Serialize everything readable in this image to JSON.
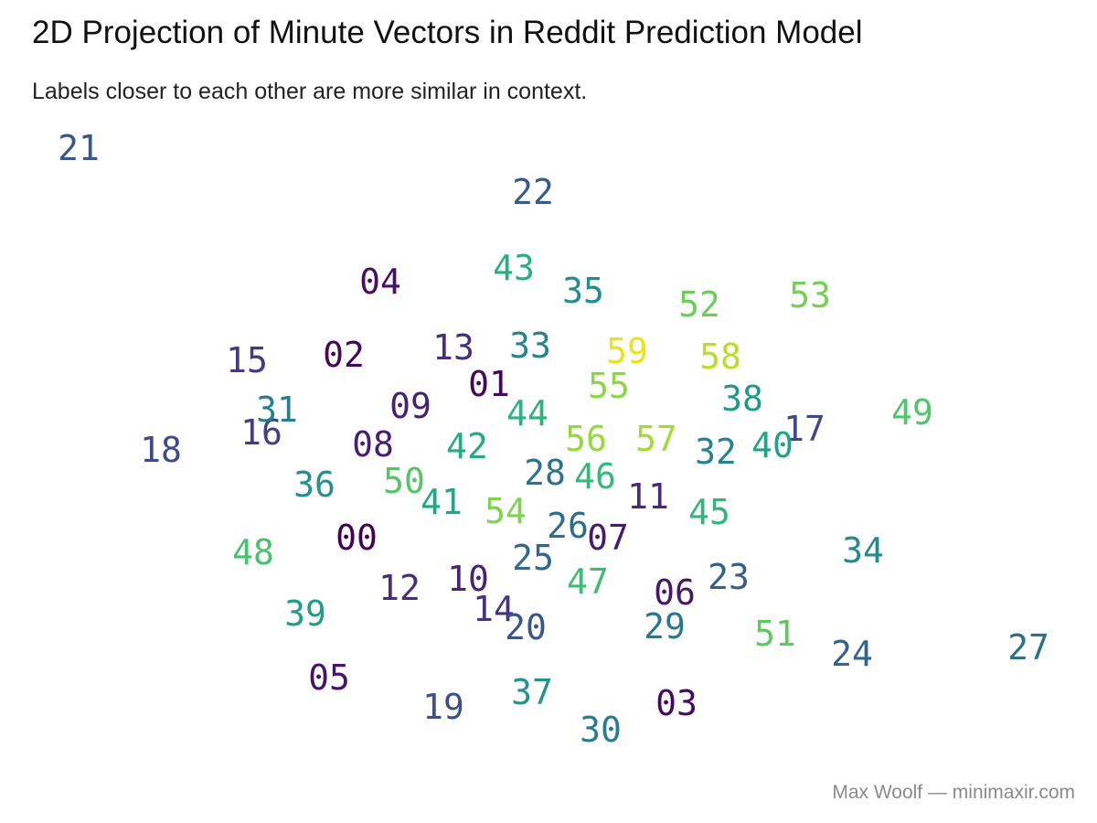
{
  "title": "2D Projection of Minute Vectors in Reddit Prediction Model",
  "subtitle": "Labels closer to each other are more similar in context.",
  "caption": "Max Woolf — minimaxir.com",
  "chart_data": {
    "type": "scatter",
    "title": "2D Projection of Minute Vectors in Reddit Prediction Model",
    "subtitle": "Labels closer to each other are more similar in context.",
    "xlabel": "",
    "ylabel": "",
    "grid": false,
    "legend": "none",
    "xlim": [
      0,
      1200
    ],
    "ylim": [
      0,
      900
    ],
    "color_scale": "viridis (00 = dark purple → 59 = yellow)",
    "points": [
      {
        "label": "00",
        "x": 390,
        "y": 312,
        "color": "#440154"
      },
      {
        "label": "01",
        "x": 535,
        "y": 480,
        "color": "#450559"
      },
      {
        "label": "02",
        "x": 376,
        "y": 512,
        "color": "#46085c"
      },
      {
        "label": "03",
        "x": 740,
        "y": 131,
        "color": "#460b5e"
      },
      {
        "label": "04",
        "x": 416,
        "y": 592,
        "color": "#471063"
      },
      {
        "label": "05",
        "x": 360,
        "y": 159,
        "color": "#481467"
      },
      {
        "label": "06",
        "x": 738,
        "y": 252,
        "color": "#481769"
      },
      {
        "label": "07",
        "x": 665,
        "y": 312,
        "color": "#481b6d"
      },
      {
        "label": "08",
        "x": 408,
        "y": 414,
        "color": "#481f70"
      },
      {
        "label": "09",
        "x": 449,
        "y": 456,
        "color": "#482173"
      },
      {
        "label": "10",
        "x": 512,
        "y": 267,
        "color": "#482475"
      },
      {
        "label": "11",
        "x": 709,
        "y": 357,
        "color": "#472a7a"
      },
      {
        "label": "12",
        "x": 437,
        "y": 257,
        "color": "#472d7b"
      },
      {
        "label": "13",
        "x": 496,
        "y": 520,
        "color": "#46307e"
      },
      {
        "label": "14",
        "x": 540,
        "y": 234,
        "color": "#453581"
      },
      {
        "label": "15",
        "x": 270,
        "y": 506,
        "color": "#443983"
      },
      {
        "label": "16",
        "x": 286,
        "y": 427,
        "color": "#433e85"
      },
      {
        "label": "17",
        "x": 880,
        "y": 431,
        "color": "#3f4889"
      },
      {
        "label": "18",
        "x": 176,
        "y": 408,
        "color": "#3e4a89"
      },
      {
        "label": "19",
        "x": 485,
        "y": 127,
        "color": "#3c4f8a"
      },
      {
        "label": "20",
        "x": 575,
        "y": 214,
        "color": "#3a548c"
      },
      {
        "label": "21",
        "x": 86,
        "y": 738,
        "color": "#38588c"
      },
      {
        "label": "22",
        "x": 583,
        "y": 690,
        "color": "#365c8d"
      },
      {
        "label": "23",
        "x": 797,
        "y": 269,
        "color": "#355f8d"
      },
      {
        "label": "24",
        "x": 932,
        "y": 185,
        "color": "#32648e"
      },
      {
        "label": "25",
        "x": 583,
        "y": 290,
        "color": "#31688e"
      },
      {
        "label": "26",
        "x": 621,
        "y": 325,
        "color": "#2f6c8e"
      },
      {
        "label": "27",
        "x": 1125,
        "y": 192,
        "color": "#2d708e"
      },
      {
        "label": "28",
        "x": 596,
        "y": 383,
        "color": "#2c728e"
      },
      {
        "label": "29",
        "x": 727,
        "y": 215,
        "color": "#2a778e"
      },
      {
        "label": "30",
        "x": 657,
        "y": 102,
        "color": "#297b8e"
      },
      {
        "label": "31",
        "x": 303,
        "y": 452,
        "color": "#277f8e"
      },
      {
        "label": "32",
        "x": 783,
        "y": 406,
        "color": "#26828e"
      },
      {
        "label": "33",
        "x": 580,
        "y": 522,
        "color": "#25858e"
      },
      {
        "label": "34",
        "x": 944,
        "y": 298,
        "color": "#238a8d"
      },
      {
        "label": "35",
        "x": 638,
        "y": 582,
        "color": "#228d8d"
      },
      {
        "label": "36",
        "x": 344,
        "y": 370,
        "color": "#21918c"
      },
      {
        "label": "37",
        "x": 582,
        "y": 143,
        "color": "#20958b"
      },
      {
        "label": "38",
        "x": 812,
        "y": 464,
        "color": "#1f998a"
      },
      {
        "label": "39",
        "x": 334,
        "y": 229,
        "color": "#1f9d89"
      },
      {
        "label": "40",
        "x": 845,
        "y": 413,
        "color": "#20a386"
      },
      {
        "label": "41",
        "x": 483,
        "y": 351,
        "color": "#22a785"
      },
      {
        "label": "42",
        "x": 511,
        "y": 412,
        "color": "#25ab82"
      },
      {
        "label": "43",
        "x": 562,
        "y": 607,
        "color": "#29af7f"
      },
      {
        "label": "44",
        "x": 577,
        "y": 448,
        "color": "#2db27d"
      },
      {
        "label": "45",
        "x": 776,
        "y": 340,
        "color": "#31b67b"
      },
      {
        "label": "46",
        "x": 651,
        "y": 379,
        "color": "#37b878"
      },
      {
        "label": "47",
        "x": 643,
        "y": 264,
        "color": "#3dbc74"
      },
      {
        "label": "48",
        "x": 277,
        "y": 296,
        "color": "#48c16e"
      },
      {
        "label": "49",
        "x": 998,
        "y": 449,
        "color": "#51c56a"
      },
      {
        "label": "50",
        "x": 442,
        "y": 374,
        "color": "#55c667"
      },
      {
        "label": "51",
        "x": 848,
        "y": 207,
        "color": "#5ec962"
      },
      {
        "label": "52",
        "x": 765,
        "y": 567,
        "color": "#6ccd5a"
      },
      {
        "label": "53",
        "x": 886,
        "y": 577,
        "color": "#75d054"
      },
      {
        "label": "54",
        "x": 553,
        "y": 341,
        "color": "#7fd34e"
      },
      {
        "label": "55",
        "x": 666,
        "y": 478,
        "color": "#8bd646"
      },
      {
        "label": "56",
        "x": 641,
        "y": 420,
        "color": "#95d840"
      },
      {
        "label": "57",
        "x": 718,
        "y": 420,
        "color": "#a2da37"
      },
      {
        "label": "58",
        "x": 788,
        "y": 510,
        "color": "#b8de29"
      },
      {
        "label": "59",
        "x": 686,
        "y": 516,
        "color": "#e8e419"
      }
    ]
  }
}
